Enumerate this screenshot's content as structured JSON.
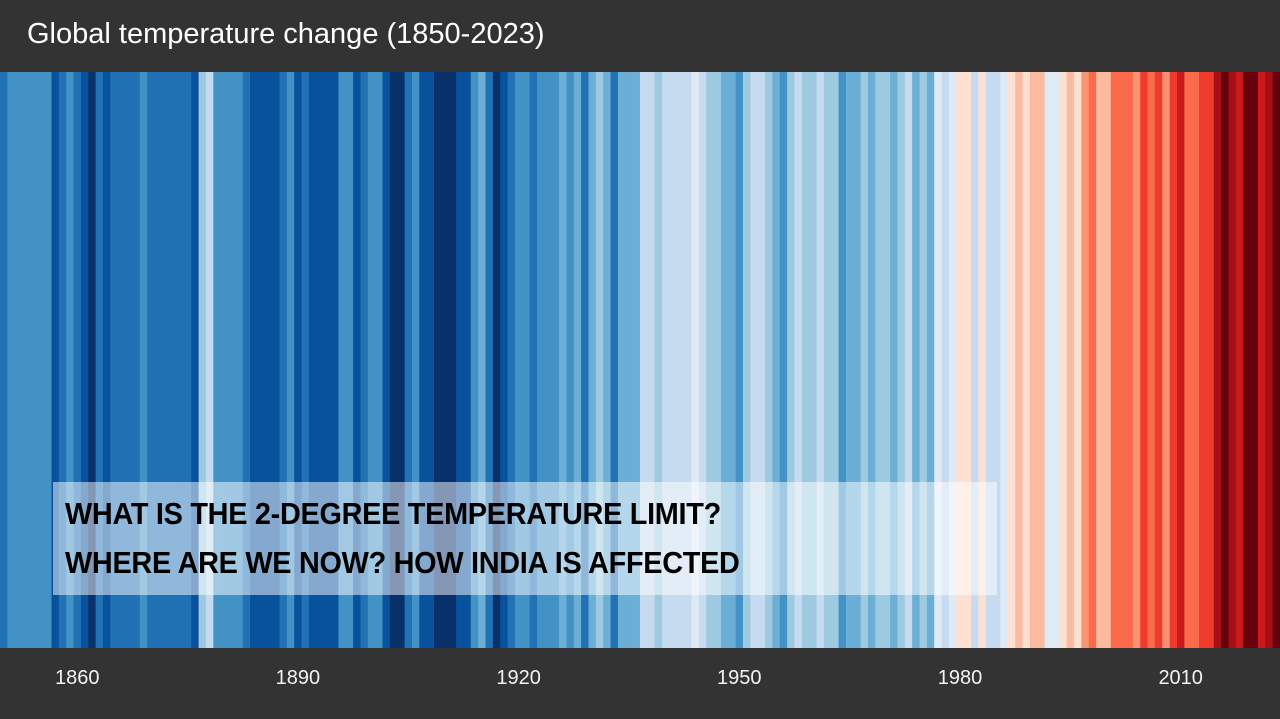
{
  "header": {
    "title": "Global temperature change (1850-2023)"
  },
  "overlay": {
    "line1": "WHAT IS THE 2-DEGREE TEMPERATURE LIMIT?",
    "line2": "WHERE ARE WE NOW? HOW INDIA IS AFFECTED"
  },
  "chart_data": {
    "type": "heatmap",
    "title": "Global temperature change (1850-2023)",
    "x_start": 1850,
    "x_end": 2023,
    "tick_labels": [
      "1860",
      "1890",
      "1920",
      "1950",
      "1980",
      "2010"
    ],
    "tick_years": [
      1860,
      1890,
      1920,
      1950,
      1980,
      2010
    ],
    "palette": [
      "#08306b",
      "#08519c",
      "#2171b5",
      "#4292c6",
      "#6baed6",
      "#9ecae1",
      "#c6dbef",
      "#deebf7",
      "#fee0d2",
      "#fcbba1",
      "#fc9272",
      "#fb6a4a",
      "#ef3b2c",
      "#cb181d",
      "#a50f15",
      "#67000d"
    ],
    "color_levels_by_year": [
      2,
      3,
      3,
      3,
      3,
      3,
      3,
      1,
      2,
      3,
      2,
      1,
      0,
      2,
      1,
      2,
      2,
      2,
      2,
      3,
      2,
      2,
      2,
      2,
      2,
      2,
      1,
      5,
      6,
      3,
      3,
      3,
      3,
      2,
      1,
      1,
      1,
      1,
      2,
      3,
      1,
      2,
      1,
      1,
      1,
      1,
      3,
      3,
      1,
      2,
      3,
      3,
      1,
      0,
      0,
      2,
      3,
      1,
      1,
      0,
      0,
      0,
      1,
      1,
      3,
      4,
      2,
      0,
      1,
      2,
      3,
      3,
      2,
      3,
      3,
      3,
      4,
      3,
      4,
      2,
      4,
      5,
      4,
      2,
      4,
      4,
      4,
      6,
      6,
      5,
      6,
      6,
      6,
      6,
      7,
      6,
      5,
      5,
      4,
      4,
      3,
      5,
      6,
      6,
      5,
      4,
      3,
      5,
      6,
      5,
      5,
      6,
      5,
      5,
      3,
      4,
      4,
      5,
      4,
      5,
      5,
      4,
      5,
      6,
      4,
      5,
      4,
      7,
      6,
      7,
      8,
      8,
      6,
      8,
      6,
      6,
      7,
      8,
      9,
      8,
      9,
      9,
      7,
      7,
      8,
      9,
      8,
      10,
      11,
      9,
      9,
      11,
      11,
      11,
      10,
      12,
      11,
      12,
      10,
      12,
      13,
      11,
      11,
      12,
      12,
      14,
      15,
      14,
      13,
      15,
      15,
      13,
      14,
      15
    ]
  }
}
